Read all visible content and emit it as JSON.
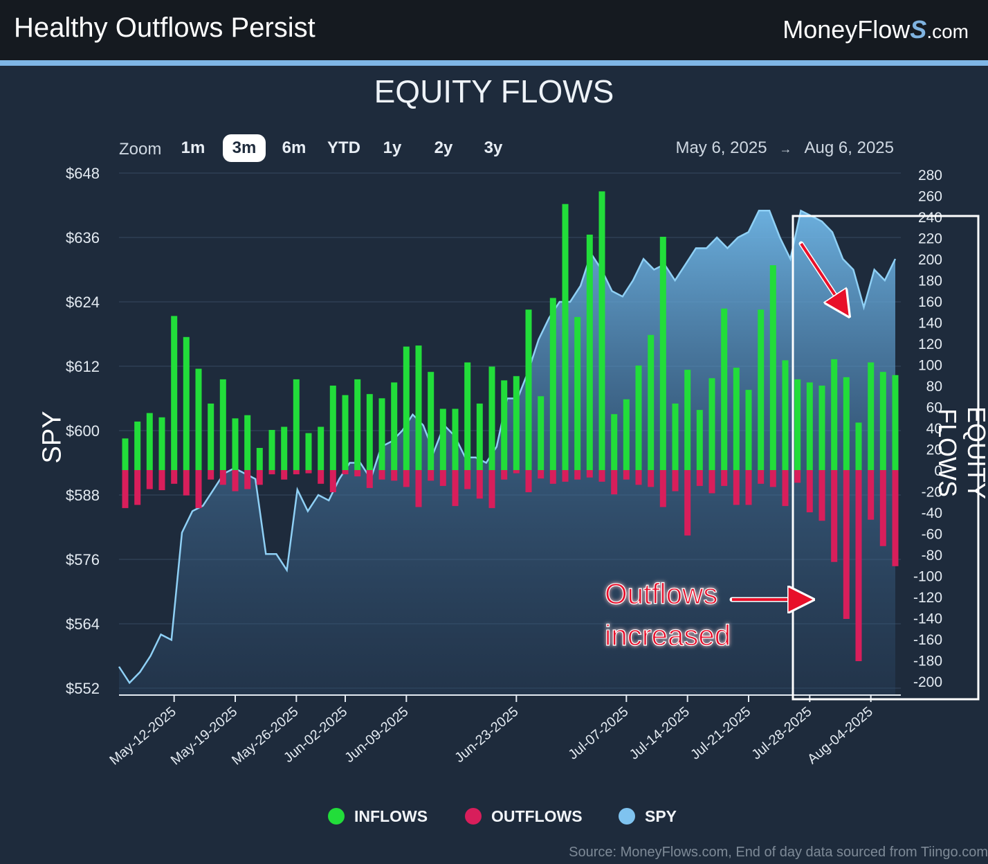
{
  "header": {
    "title": "Healthy Outflows Persist",
    "brand_main": "MoneyFlow",
    "brand_s": "S",
    "brand_com": ".com"
  },
  "chart_title": "EQUITY FLOWS",
  "zoom": {
    "label": "Zoom",
    "options": [
      "1m",
      "3m",
      "6m",
      "YTD",
      "1y",
      "2y",
      "3y"
    ],
    "active": "3m"
  },
  "date_range": {
    "from": "May 6, 2025",
    "arrow": "→",
    "to": "Aug 6, 2025"
  },
  "axis": {
    "left_label": "SPY",
    "right_label": "EQUITY FLOWS"
  },
  "annotation": {
    "line1": "Outflows",
    "line2": "increased"
  },
  "legend": {
    "inflows": "INFLOWS",
    "outflows": "OUTFLOWS",
    "spy": "SPY"
  },
  "colors": {
    "inflows": "#22dd3a",
    "outflows": "#d81e5b",
    "spy": "#7fc3ef",
    "annotation": "#e8102a",
    "background": "#1e2b3c"
  },
  "source": "Source: MoneyFlows.com, End of day data sourced from Tiingo.com",
  "chart_data": {
    "type": "bar",
    "left_axis": {
      "ylim": [
        552,
        648
      ],
      "ticks": [
        "$648",
        "$636",
        "$624",
        "$612",
        "$600",
        "$588",
        "$576",
        "$564",
        "$552"
      ]
    },
    "right_axis": {
      "ylim": [
        -200,
        280
      ],
      "ticks": [
        "280",
        "260",
        "240",
        "220",
        "200",
        "180",
        "160",
        "140",
        "120",
        "100",
        "80",
        "60",
        "40",
        "20",
        "0",
        "-20",
        "-40",
        "-60",
        "-80",
        "-100",
        "-120",
        "-140",
        "-160",
        "-180",
        "-200"
      ]
    },
    "x_ticks": [
      "May-12-2025",
      "May-19-2025",
      "May-26-2025",
      "Jun-02-2025",
      "Jun-09-2025",
      "Jun-23-2025",
      "Jul-07-2025",
      "Jul-14-2025",
      "Jul-21-2025",
      "Jul-28-2025",
      "Aug-04-2025"
    ],
    "inflows": [
      30,
      46,
      54,
      50,
      146,
      126,
      96,
      63,
      86,
      49,
      52,
      21,
      38,
      41,
      86,
      35,
      41,
      80,
      71,
      86,
      72,
      68,
      83,
      117,
      118,
      93,
      58,
      58,
      102,
      63,
      98,
      85,
      89,
      152,
      70,
      163,
      252,
      145,
      223,
      264,
      53,
      67,
      99,
      128,
      221,
      63,
      95,
      57,
      87,
      153,
      97,
      76,
      152,
      194,
      104,
      86,
      83,
      80,
      105,
      88,
      45,
      102,
      93,
      90
    ],
    "outflows": [
      -36,
      -33,
      -18,
      -19,
      -13,
      -24,
      -36,
      -9,
      -14,
      -20,
      -18,
      -14,
      -4,
      -9,
      -4,
      -3,
      -13,
      -21,
      -4,
      -6,
      -17,
      -9,
      -10,
      -16,
      -35,
      -10,
      -15,
      -34,
      -18,
      -27,
      -36,
      -9,
      -3,
      -21,
      -8,
      -13,
      -11,
      -9,
      -7,
      -11,
      -23,
      -9,
      -14,
      -16,
      -35,
      -20,
      -62,
      -15,
      -22,
      -15,
      -33,
      -33,
      -13,
      -16,
      -34,
      -12,
      -40,
      -48,
      -87,
      -141,
      -181,
      -47,
      -72,
      -91
    ],
    "spy": [
      556,
      553,
      555,
      558,
      562,
      561,
      581,
      585,
      586,
      589,
      592,
      593,
      592,
      591,
      577,
      577,
      574,
      589,
      585,
      588,
      587,
      591,
      594,
      594,
      591,
      597,
      598,
      600,
      603,
      601,
      596,
      601,
      599,
      595,
      595,
      594,
      597,
      606,
      606,
      611,
      617,
      621,
      624,
      624,
      627,
      633,
      630,
      626,
      625,
      628,
      632,
      630,
      631,
      628,
      631,
      634,
      634,
      636,
      634,
      636,
      637,
      641,
      641,
      636,
      632,
      641,
      640,
      639,
      637,
      632,
      630,
      623,
      630,
      628,
      632
    ],
    "spy_shown_until": 75
  }
}
